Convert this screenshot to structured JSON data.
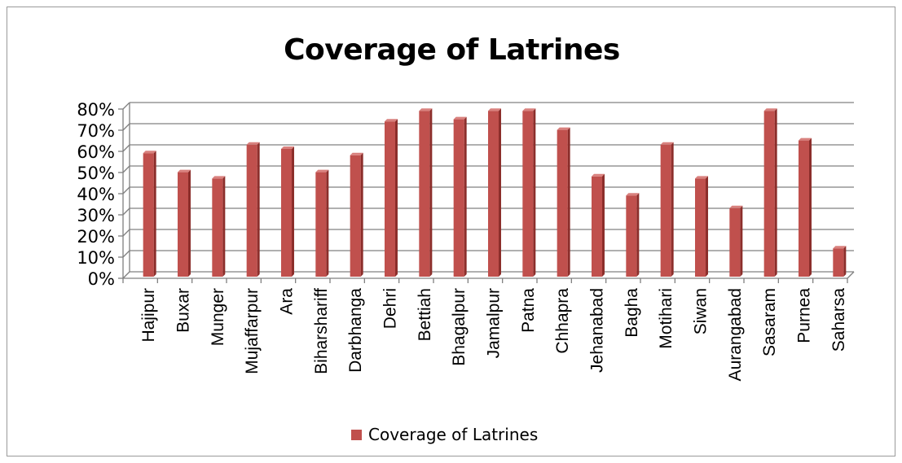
{
  "chart_data": {
    "type": "bar",
    "title": "Coverage of Latrines",
    "xlabel": "",
    "ylabel": "",
    "ylim": [
      0,
      80
    ],
    "yticks": [
      "0%",
      "10%",
      "20%",
      "30%",
      "40%",
      "50%",
      "60%",
      "70%",
      "80%"
    ],
    "categories": [
      "Hajipur",
      "Buxar",
      "Munger",
      "Mujaffarpur",
      "Ara",
      "Biharshariff",
      "Darbhanga",
      "Dehri",
      "Bettiah",
      "Bhagalpur",
      "Jamalpur",
      "Patna",
      "Chhapra",
      "Jehanabad",
      "Bagha",
      "Motihari",
      "Siwan",
      "Aurangabad",
      "Sasaram",
      "Purnea",
      "Saharsa"
    ],
    "series": [
      {
        "name": "Coverage of Latrines",
        "values": [
          58,
          49,
          46,
          62,
          60,
          49,
          57,
          73,
          78,
          74,
          78,
          78,
          69,
          47,
          38,
          62,
          46,
          32,
          78,
          64,
          13
        ]
      }
    ],
    "grid": true,
    "legend_position": "bottom",
    "colors": {
      "bar": "#c0504d",
      "bar_dark": "#8c2e2b",
      "bar_light": "#d9817e",
      "grid": "#808080"
    }
  }
}
